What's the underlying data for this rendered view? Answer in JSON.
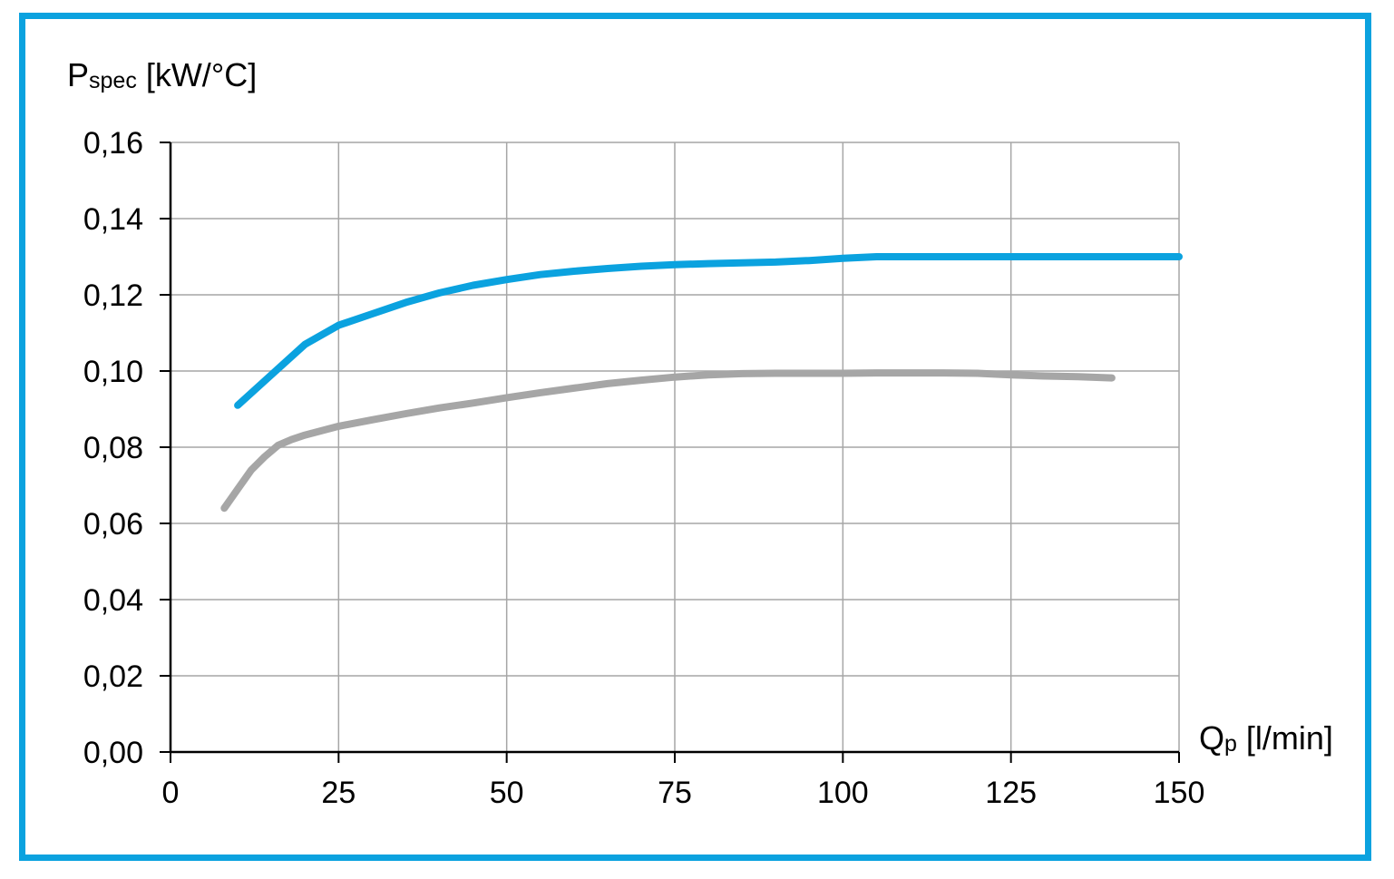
{
  "chart_data": {
    "type": "line",
    "ylabel": {
      "main": "P",
      "sub": "spec",
      "unit": " [kW/°C]"
    },
    "xlabel": {
      "main": "Q",
      "sub": "p",
      "unit": " [l/min]"
    },
    "xlim": [
      0,
      150
    ],
    "ylim": [
      0,
      0.16
    ],
    "xticks": [
      0,
      25,
      50,
      75,
      100,
      125,
      150
    ],
    "yticks": [
      0,
      0.02,
      0.04,
      0.06,
      0.08,
      0.1,
      0.12,
      0.14,
      0.16
    ],
    "xtick_labels": [
      "0",
      "25",
      "50",
      "75",
      "100",
      "125",
      "150"
    ],
    "ytick_labels": [
      "0,00",
      "0,02",
      "0,04",
      "0,06",
      "0,08",
      "0,10",
      "0,12",
      "0,14",
      "0,16"
    ],
    "grid": true,
    "colors": {
      "frame": "#0ba2df",
      "grid": "#a6a6a6",
      "axis": "#000000"
    },
    "series": [
      {
        "color": "#0ba2df",
        "x": [
          10,
          15,
          20,
          25,
          30,
          35,
          40,
          45,
          50,
          55,
          60,
          65,
          70,
          75,
          80,
          85,
          90,
          95,
          100,
          105,
          110,
          120,
          130,
          140,
          150
        ],
        "y": [
          0.091,
          0.099,
          0.107,
          0.112,
          0.115,
          0.118,
          0.1205,
          0.1225,
          0.124,
          0.1253,
          0.1262,
          0.1269,
          0.1275,
          0.1279,
          0.1282,
          0.1284,
          0.1286,
          0.129,
          0.1296,
          0.13,
          0.13,
          0.13,
          0.13,
          0.13,
          0.13
        ]
      },
      {
        "color": "#a6a6a6",
        "x": [
          8,
          10,
          12,
          14,
          16,
          18,
          20,
          25,
          30,
          35,
          40,
          45,
          50,
          55,
          60,
          65,
          70,
          75,
          80,
          85,
          90,
          95,
          100,
          105,
          110,
          115,
          120,
          125,
          130,
          135,
          140
        ],
        "y": [
          0.064,
          0.069,
          0.074,
          0.0775,
          0.0805,
          0.082,
          0.0832,
          0.0855,
          0.0872,
          0.0888,
          0.0903,
          0.0916,
          0.093,
          0.0943,
          0.0955,
          0.0967,
          0.0976,
          0.0984,
          0.099,
          0.0993,
          0.0994,
          0.0994,
          0.0994,
          0.0995,
          0.0995,
          0.0995,
          0.0994,
          0.099,
          0.0987,
          0.0985,
          0.0982
        ]
      }
    ]
  }
}
